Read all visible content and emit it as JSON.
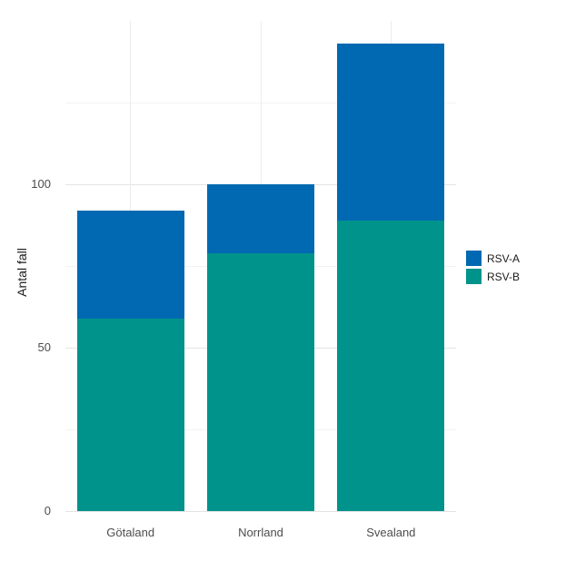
{
  "chart_data": {
    "type": "bar",
    "stacked": true,
    "title": "",
    "xlabel": "",
    "ylabel": "Antal fall",
    "categories": [
      "Götaland",
      "Norrland",
      "Svealand"
    ],
    "series": [
      {
        "name": "RSV-A",
        "color": "#0069B1",
        "values": [
          33,
          21,
          54
        ]
      },
      {
        "name": "RSV-B",
        "color": "#00938C",
        "values": [
          59,
          79,
          89
        ]
      }
    ],
    "totals": [
      92,
      100,
      143
    ],
    "yticks": [
      0,
      50,
      100
    ],
    "yticks_minor": [
      25,
      75,
      125
    ],
    "ylim": [
      0,
      150
    ],
    "grid": true,
    "legend_position": "right"
  }
}
